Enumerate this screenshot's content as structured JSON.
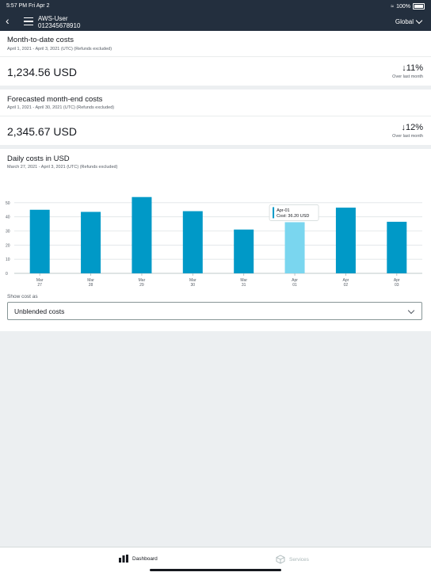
{
  "status_bar": {
    "time_date": "5:57 PM  Fri Apr 2",
    "battery": "100%"
  },
  "header": {
    "user": "AWS-User",
    "account_id": "012345678910",
    "region": "Global"
  },
  "month_to_date": {
    "title": "Month-to-date costs",
    "subtitle": "April 1, 2021 - April 3, 2021 (UTC) (Refunds excluded)",
    "amount": "1,234.56 USD",
    "change": "↓11%",
    "change_label": "Over last month"
  },
  "forecast": {
    "title": "Forecasted month-end costs",
    "subtitle": "April 1, 2021 - April 30, 2021 (UTC) (Refunds excluded)",
    "amount": "2,345.67 USD",
    "change": "↓12%",
    "change_label": "Over last month"
  },
  "daily": {
    "title": "Daily costs in USD",
    "subtitle": "March 27, 2021 - April 3, 2021 (UTC) (Refunds excluded)",
    "tooltip": {
      "date": "Apr-01",
      "cost": "Cost: 36.20 USD"
    }
  },
  "chart_data": {
    "type": "bar",
    "categories": [
      [
        "Mar",
        "27"
      ],
      [
        "Mar",
        "28"
      ],
      [
        "Mar",
        "29"
      ],
      [
        "Mar",
        "30"
      ],
      [
        "Mar",
        "31"
      ],
      [
        "Apr",
        "01"
      ],
      [
        "Apr",
        "02"
      ],
      [
        "Apr",
        "03"
      ]
    ],
    "values": [
      45,
      43.5,
      54,
      44,
      31,
      36.2,
      46.5,
      36.5
    ],
    "ylim": [
      0,
      60
    ],
    "yticks": [
      0,
      10,
      20,
      30,
      40,
      50
    ],
    "grid": true,
    "highlighted_index": 5,
    "colors": {
      "bar": "#0099c7",
      "highlight": "#7ad6ef",
      "grid": "#dfe3e6"
    }
  },
  "show_cost": {
    "label": "Show cost as",
    "value": "Unblended costs"
  },
  "tabs": [
    {
      "label": "Dashboard",
      "icon": "bar-chart-icon",
      "active": true
    },
    {
      "label": "Services",
      "icon": "cube-icon",
      "active": false
    }
  ]
}
